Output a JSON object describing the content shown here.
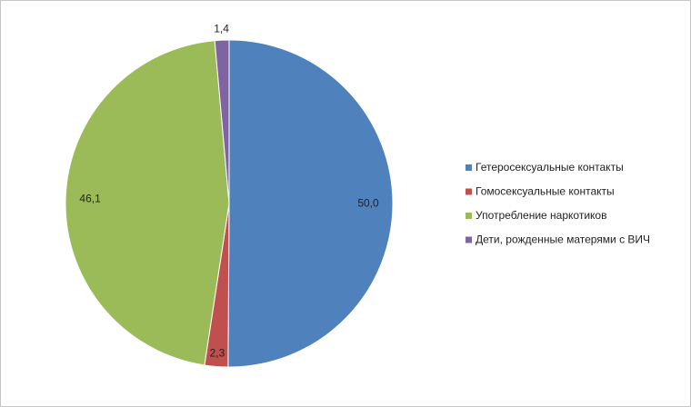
{
  "chart_data": {
    "type": "pie",
    "categories": [
      "Гетеросексуальные контакты",
      "Гомосексуальные контакты",
      "Употребление наркотиков",
      "Дети, рожденные матерями с ВИЧ"
    ],
    "values": [
      50.0,
      2.3,
      46.1,
      1.4
    ],
    "value_labels": [
      "50,0",
      "2,3",
      "46,1",
      "1,4"
    ],
    "colors": [
      "#4f81bd",
      "#c0504d",
      "#9bbb59",
      "#8064a2"
    ],
    "legend": "right"
  }
}
